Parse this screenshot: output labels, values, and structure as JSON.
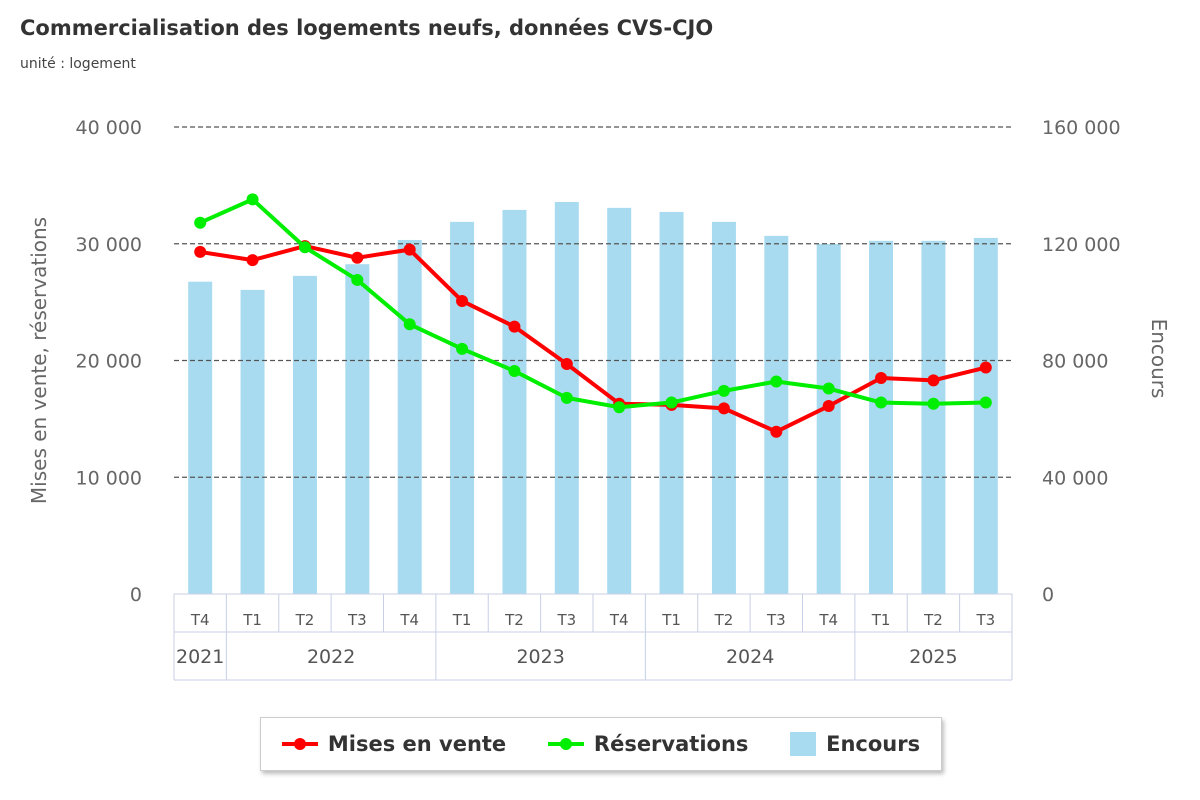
{
  "chart_data": {
    "type": "bar+line",
    "title": "Commercialisation des logements neufs, données CVS-CJO",
    "subtitle": "unité : logement",
    "ylabel": "Mises en vente, réservations",
    "ylabel_right": "Encours",
    "ylim": [
      0,
      40000
    ],
    "ylim_right": [
      0,
      160000
    ],
    "yticks": [
      "0",
      "10 000",
      "20 000",
      "30 000",
      "40 000"
    ],
    "yticks_right": [
      "0",
      "40 000",
      "80 000",
      "120 000",
      "160 000"
    ],
    "grid": true,
    "legend_position": "bottom",
    "categories": [
      "T4",
      "T1",
      "T2",
      "T3",
      "T4",
      "T1",
      "T2",
      "T3",
      "T4",
      "T1",
      "T2",
      "T3",
      "T4",
      "T1",
      "T2",
      "T3"
    ],
    "years": [
      {
        "label": "2021",
        "span": 1
      },
      {
        "label": "2022",
        "span": 4
      },
      {
        "label": "2023",
        "span": 4
      },
      {
        "label": "2024",
        "span": 4
      },
      {
        "label": "2025",
        "span": 3
      }
    ],
    "series": [
      {
        "name": "Mises en vente",
        "type": "line",
        "axis": "left",
        "color": "#ff0000",
        "values": [
          29300,
          28600,
          29800,
          28800,
          29500,
          25100,
          22900,
          19700,
          16300,
          16200,
          15900,
          13900,
          16100,
          18500,
          18300,
          19400
        ]
      },
      {
        "name": "Réservations",
        "type": "line",
        "axis": "left",
        "color": "#00ee00",
        "values": [
          31800,
          33800,
          29700,
          26900,
          23100,
          21000,
          19100,
          16800,
          16000,
          16400,
          17400,
          18200,
          17600,
          16400,
          16300,
          16400
        ]
      },
      {
        "name": "Encours",
        "type": "bar",
        "axis": "right",
        "color": "#a8dbf0",
        "values": [
          107000,
          104200,
          109000,
          113000,
          121300,
          127500,
          131600,
          134300,
          132300,
          130900,
          127500,
          122700,
          119900,
          121000,
          121000,
          122000
        ]
      }
    ]
  }
}
